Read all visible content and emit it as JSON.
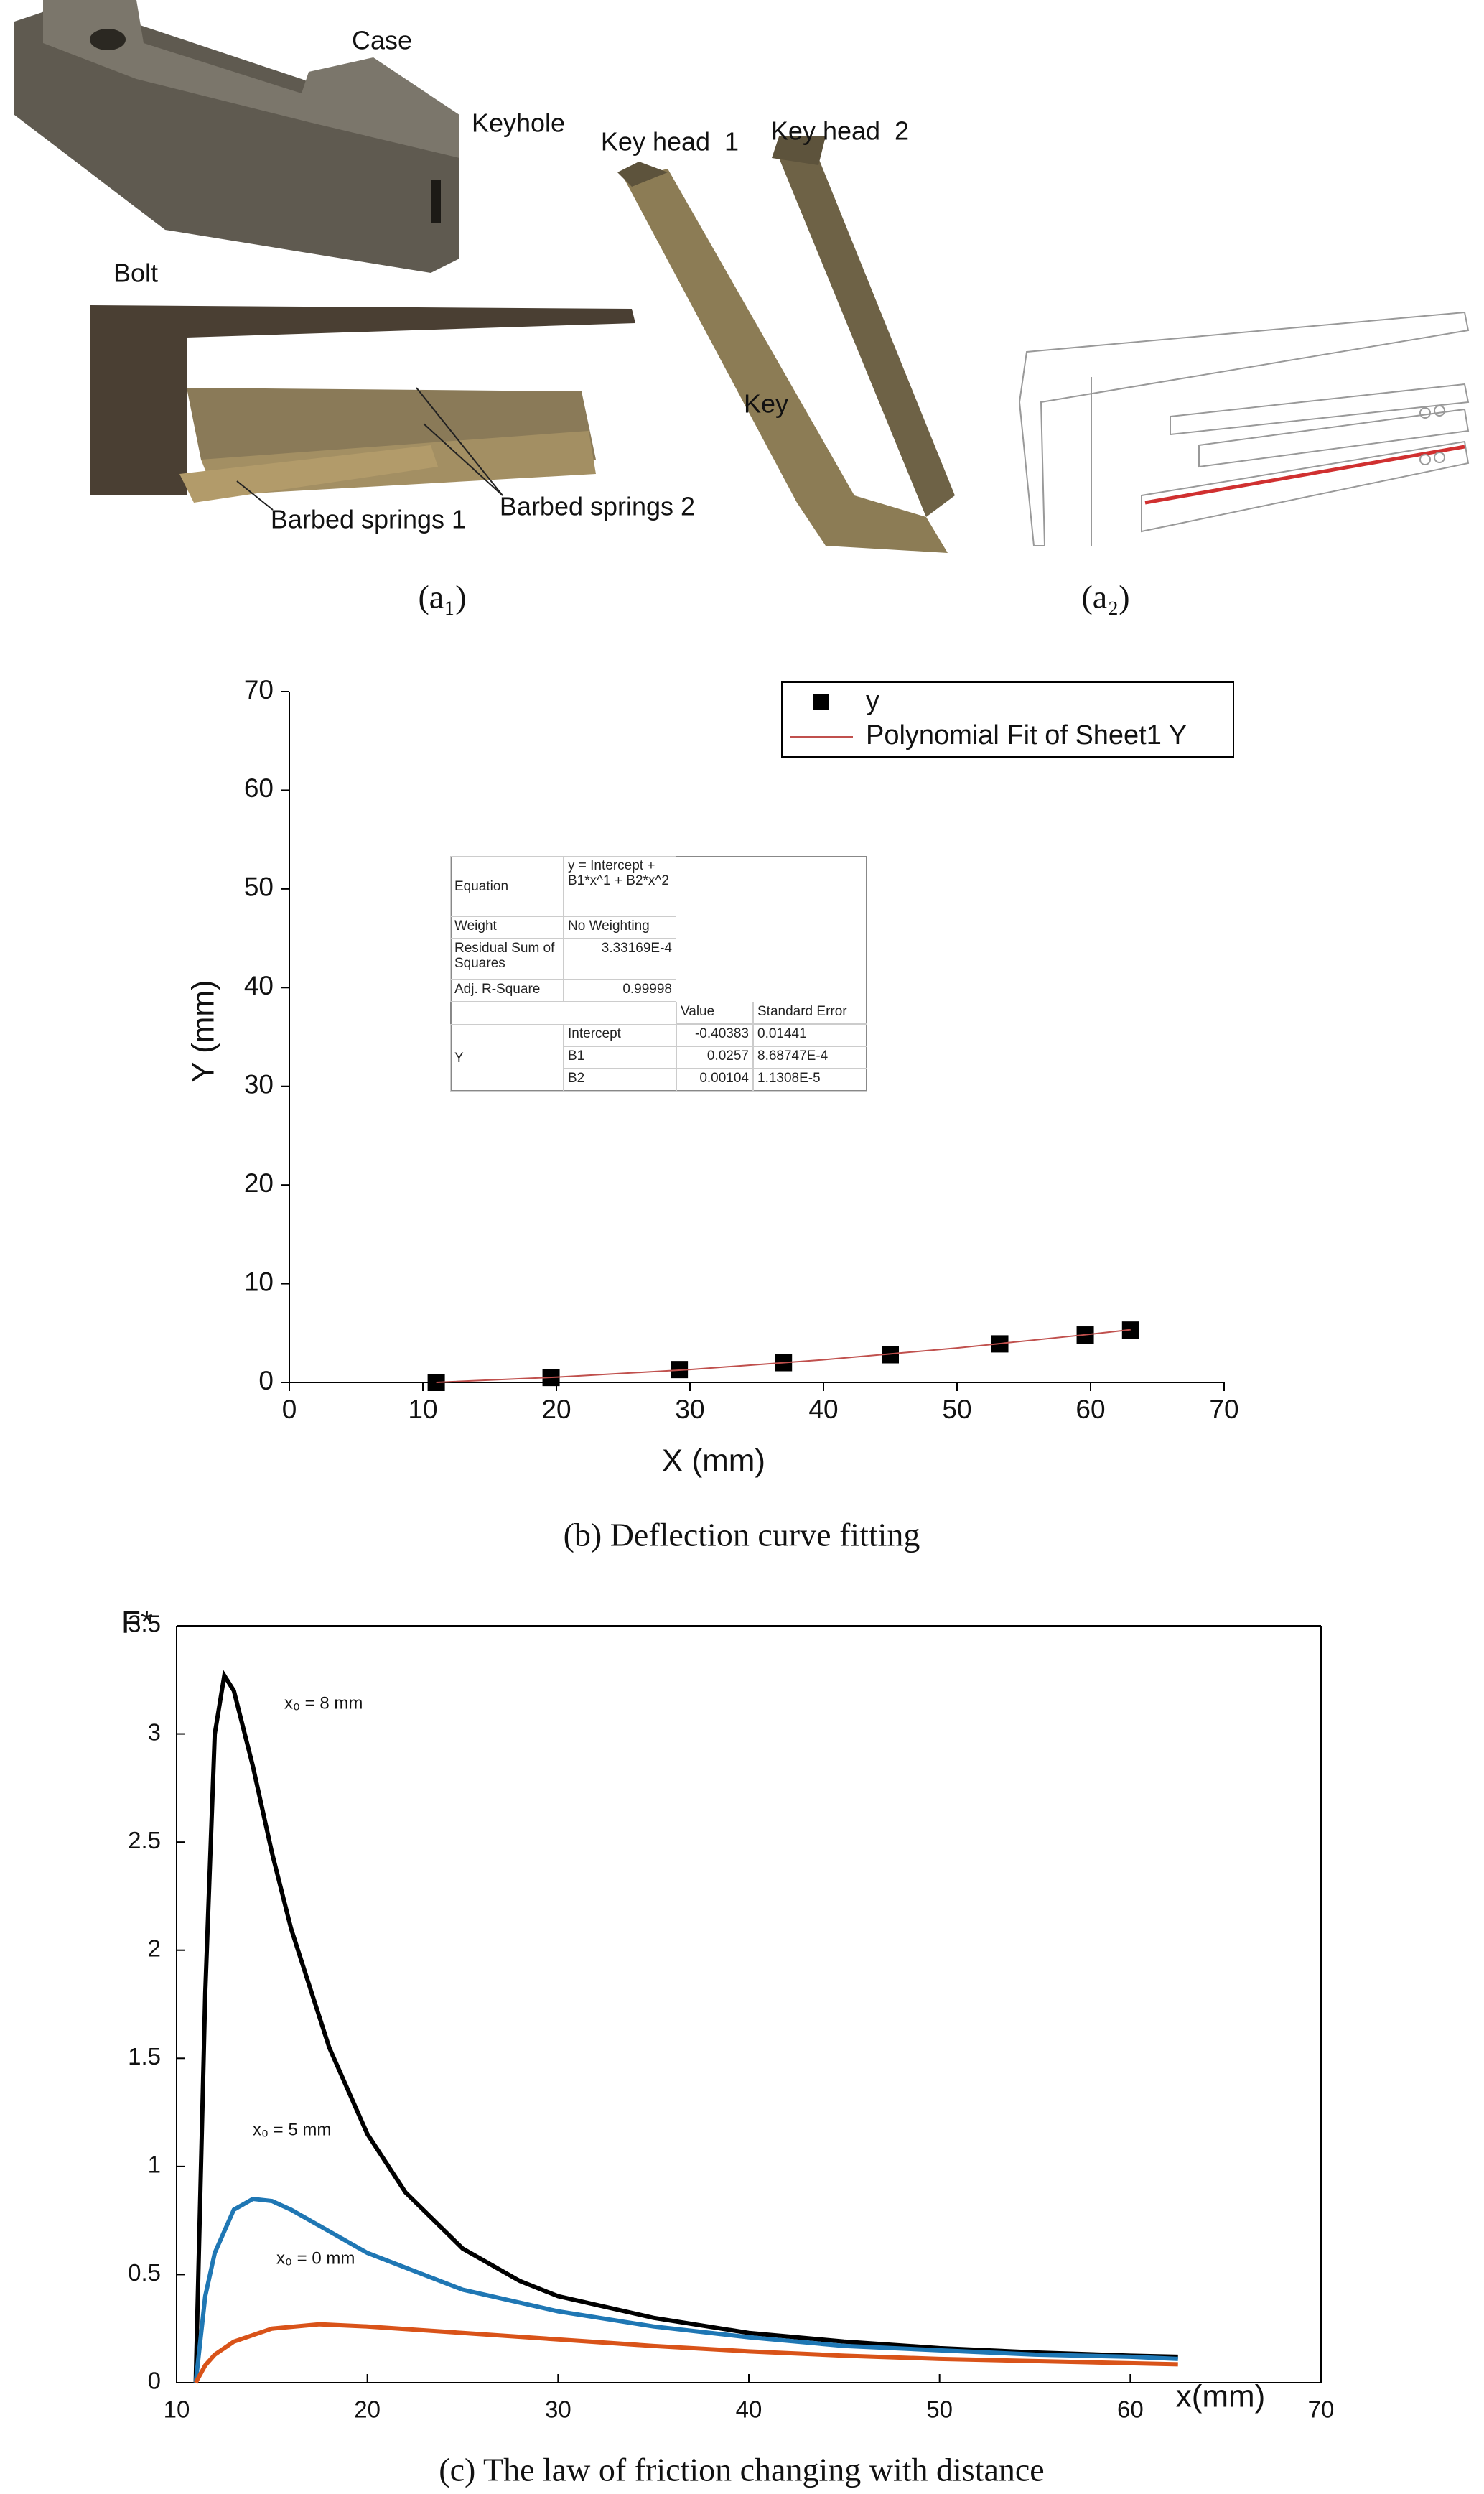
{
  "photo_panel": {
    "labels": [
      "Case",
      "Keyhole",
      "Bolt",
      "Barbed springs 1",
      "Barbed springs 2",
      "Key head  1",
      "Key head  2",
      "Key"
    ],
    "captions": [
      "(a₁)",
      "(a₂)"
    ]
  },
  "chart_data": [
    {
      "type": "scatter",
      "caption": "(b) Deflection curve fitting",
      "x_label": "X (mm)",
      "y_label": "Y (mm)",
      "xlim": [
        0,
        70
      ],
      "xticks": [
        0,
        10,
        20,
        30,
        40,
        50,
        60,
        70
      ],
      "ylim": [
        0,
        70
      ],
      "yticks": [
        0,
        10,
        20,
        30,
        40,
        50,
        60,
        70
      ],
      "legend": "upper right",
      "frame": false,
      "series": [
        {
          "name": "y",
          "color": "#000000",
          "style": "markers",
          "x": [
            11,
            19.6,
            29.2,
            37,
            45,
            53.2,
            59.6,
            63
          ],
          "values": [
            0,
            0.5,
            1.3,
            2.0,
            2.8,
            3.9,
            4.8,
            5.3
          ]
        },
        {
          "name": "Polynomial Fit of Sheet1 Y",
          "color": "#c0504d",
          "style": "line",
          "x": [
            11,
            20,
            30,
            40,
            50,
            60,
            63
          ],
          "values": [
            0.0,
            0.53,
            1.3,
            2.29,
            3.48,
            4.88,
            5.34
          ]
        }
      ],
      "fit_table": {
        "rows": [
          [
            "Equation",
            "y = Intercept + B1*x^1 + B2*x^2"
          ],
          [
            "Weight",
            "No Weighting"
          ],
          [
            "Residual Sum of Squares",
            "3.33169E-4"
          ],
          [
            "Adj. R-Square",
            "0.99998"
          ],
          [
            "Value",
            "Standard Error"
          ],
          [
            "Intercept",
            "-0.40383",
            "0.01441"
          ],
          [
            "B1",
            "0.0257",
            "8.68747E-4"
          ],
          [
            "B2",
            "0.00104",
            "1.1308E-5"
          ]
        ],
        "group_label": "Y"
      }
    },
    {
      "type": "line",
      "caption": "(c) The law of friction changing with distance",
      "x_label": "x(mm)",
      "y_label": "F*",
      "xlim": [
        10,
        70
      ],
      "xticks": [
        10,
        20,
        30,
        40,
        50,
        60,
        70
      ],
      "ylim": [
        0,
        3.5
      ],
      "yticks": [
        0,
        0.5,
        1,
        1.5,
        2,
        2.5,
        3,
        3.5
      ],
      "frame": true,
      "annotations": [
        "x₀ = 8 mm",
        "x₀ = 5 mm",
        "x₀ = 0 mm"
      ],
      "series": [
        {
          "color": "#000000",
          "x": [
            11,
            11.5,
            12,
            12.5,
            13,
            14,
            15,
            16,
            18,
            20,
            22,
            25,
            28,
            30,
            35,
            40,
            45,
            50,
            55,
            60,
            62.5
          ],
          "values": [
            0,
            1.8,
            3.0,
            3.27,
            3.2,
            2.85,
            2.45,
            2.1,
            1.55,
            1.15,
            0.88,
            0.62,
            0.47,
            0.4,
            0.3,
            0.23,
            0.19,
            0.16,
            0.14,
            0.125,
            0.12
          ]
        },
        {
          "color": "#1f77b4",
          "x": [
            11,
            11.5,
            12,
            13,
            14,
            15,
            16,
            18,
            20,
            25,
            30,
            35,
            40,
            45,
            50,
            55,
            60,
            62.5
          ],
          "values": [
            0,
            0.4,
            0.6,
            0.8,
            0.85,
            0.84,
            0.8,
            0.7,
            0.6,
            0.43,
            0.33,
            0.26,
            0.21,
            0.17,
            0.15,
            0.13,
            0.12,
            0.11
          ]
        },
        {
          "color": "#d95319",
          "x": [
            11,
            11.5,
            12,
            13,
            15,
            17.5,
            20,
            25,
            30,
            35,
            40,
            45,
            50,
            55,
            60,
            62.5
          ],
          "values": [
            0,
            0.08,
            0.13,
            0.19,
            0.25,
            0.27,
            0.26,
            0.23,
            0.2,
            0.17,
            0.145,
            0.125,
            0.11,
            0.1,
            0.09,
            0.085
          ]
        }
      ]
    }
  ]
}
